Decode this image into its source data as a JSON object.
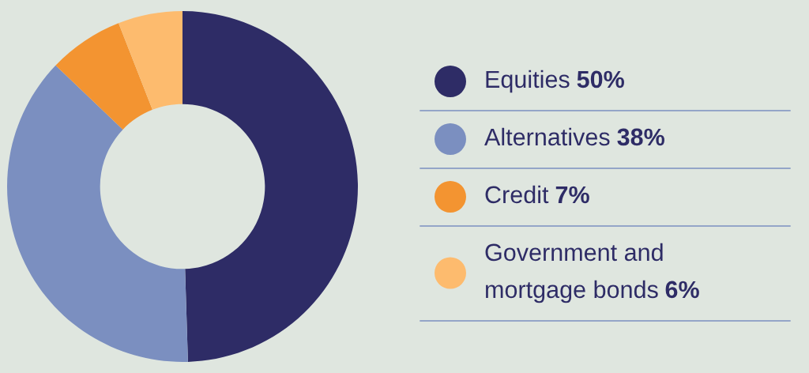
{
  "chart_data": {
    "type": "donut",
    "categories": [
      "Equities",
      "Alternatives",
      "Credit",
      "Government and mortgage bonds"
    ],
    "values": [
      50,
      38,
      7,
      6
    ],
    "value_labels": [
      "50%",
      "38%",
      "7%",
      "6%"
    ],
    "colors": [
      "#2e2c66",
      "#7b8fc0",
      "#f39431",
      "#fdbb6e"
    ],
    "legend": "right"
  }
}
